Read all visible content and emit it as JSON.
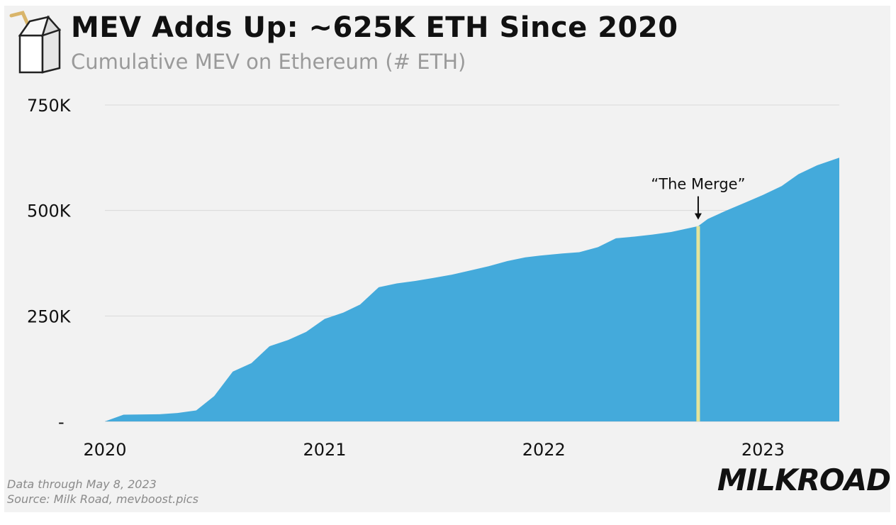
{
  "header": {
    "title": "MEV Adds Up: ~625K ETH Since 2020",
    "subtitle": "Cumulative MEV on Ethereum (# ETH)"
  },
  "footer": {
    "note_line1": "Data through May 8, 2023",
    "note_line2": "Source: Milk Road, mevboost.pics",
    "brand": "MILKROAD"
  },
  "colors": {
    "area": "#44aadb",
    "background": "#f2f2f2",
    "grid": "#d9d9d9",
    "merge_line": "#e4e49a",
    "text": "#111111"
  },
  "chart_data": {
    "type": "area",
    "x": [
      "2020-01-01",
      "2020-02-01",
      "2020-04-01",
      "2020-05-01",
      "2020-06-01",
      "2020-07-01",
      "2020-08-01",
      "2020-09-01",
      "2020-10-01",
      "2020-11-01",
      "2020-12-01",
      "2021-01-01",
      "2021-02-01",
      "2021-03-01",
      "2021-04-01",
      "2021-05-01",
      "2021-06-01",
      "2021-07-01",
      "2021-08-01",
      "2021-09-01",
      "2021-10-01",
      "2021-11-01",
      "2021-12-01",
      "2022-01-01",
      "2022-02-01",
      "2022-03-01",
      "2022-04-01",
      "2022-05-01",
      "2022-06-01",
      "2022-07-01",
      "2022-08-01",
      "2022-09-15",
      "2022-10-01",
      "2022-11-01",
      "2022-12-01",
      "2023-01-01",
      "2023-02-01",
      "2023-03-01",
      "2023-04-01",
      "2023-05-08"
    ],
    "series": [
      {
        "values": [
          0,
          16000,
          17000,
          20000,
          26000,
          60000,
          118000,
          138000,
          178000,
          193000,
          212000,
          243000,
          258000,
          277000,
          318000,
          327000,
          333000,
          340000,
          348000,
          358000,
          368000,
          380000,
          389000,
          394000,
          398000,
          401000,
          413000,
          434000,
          438000,
          443000,
          449000,
          463000,
          480000,
          500000,
          518000,
          537000,
          558000,
          586000,
          607000,
          625000
        ]
      }
    ],
    "x_ticks": [
      "2020",
      "2021",
      "2022",
      "2023"
    ],
    "y_ticks": [
      {
        "value": 0,
        "label": "-"
      },
      {
        "value": 250000,
        "label": "250K"
      },
      {
        "value": 500000,
        "label": "500K"
      },
      {
        "value": 750000,
        "label": "750K"
      }
    ],
    "ylim": [
      0,
      750000
    ],
    "xlim": [
      "2020-01-01",
      "2023-05-08"
    ],
    "grid": true,
    "annotations": [
      {
        "label": "“The Merge”",
        "x": "2022-09-15"
      }
    ]
  }
}
